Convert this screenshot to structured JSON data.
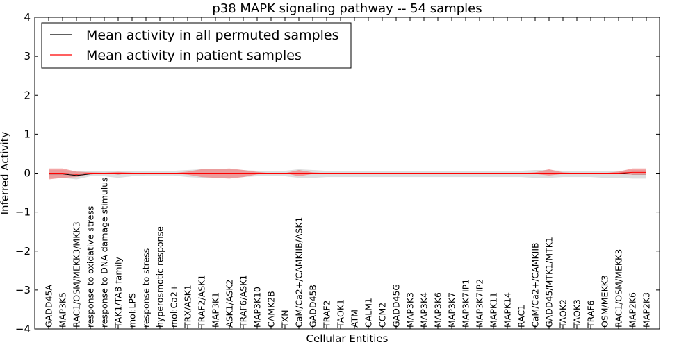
{
  "chart_data": {
    "type": "line",
    "title": "p38 MAPK signaling pathway -- 54 samples",
    "xlabel": "Cellular Entities",
    "ylabel": "Inferred Activity",
    "ylim": [
      -4,
      4
    ],
    "yticks": [
      -4,
      -3,
      -2,
      -1,
      0,
      1,
      2,
      3,
      4
    ],
    "ytick_labels": [
      "−4",
      "−3",
      "−2",
      "−1",
      "0",
      "1",
      "2",
      "3",
      "4"
    ],
    "legend_position": "top-left",
    "categories": [
      "GADD45A",
      "MAP3K5",
      "RAC1/OSM/MEKK3/MKK3",
      "response to oxidative stress",
      "response to DNA damage stimulus",
      "TAK1/TAB family",
      "mol:LPS",
      "response to stress",
      "hyperosmotic response",
      "mol:Ca2+",
      "TRX/ASK1",
      "TRAF2/ASK1",
      "MAP3K1",
      "ASK1/ASK2",
      "TRAF6/ASK1",
      "MAP3K10",
      "CAMK2B",
      "TXN",
      "CaM/Ca2+/CAMKIIB/ASK1",
      "GADD45B",
      "TRAF2",
      "TAOK1",
      "ATM",
      "CALM1",
      "CCM2",
      "GADD45G",
      "MAP3K3",
      "MAP3K4",
      "MAP3K6",
      "MAP3K7",
      "MAP3K7IP1",
      "MAP3K7IP2",
      "MAPK11",
      "MAPK14",
      "RAC1",
      "CaM/Ca2+/CAMKIIB",
      "GADD45/MTK1/MTK1",
      "TAOK2",
      "TAOK3",
      "TRAF6",
      "OSM/MEKK3",
      "RAC1/OSM/MEKK3",
      "MAP2K6",
      "MAP2K3"
    ],
    "series": [
      {
        "name": "Mean activity in all permuted samples",
        "color": "#000000",
        "values": [
          -0.02,
          -0.02,
          -0.06,
          -0.02,
          -0.01,
          -0.02,
          -0.01,
          0.0,
          0.0,
          0.0,
          0.0,
          0.0,
          0.0,
          0.0,
          0.0,
          0.0,
          0.0,
          0.0,
          0.0,
          0.0,
          0.0,
          0.0,
          0.0,
          0.0,
          0.0,
          0.0,
          0.0,
          0.0,
          0.0,
          0.0,
          0.0,
          0.0,
          0.0,
          0.0,
          0.0,
          0.0,
          0.0,
          0.0,
          0.0,
          0.0,
          0.0,
          0.0,
          -0.02,
          -0.02
        ],
        "band_low": [
          -0.12,
          -0.12,
          -0.16,
          -0.08,
          -0.08,
          -0.12,
          -0.08,
          -0.06,
          -0.06,
          -0.06,
          -0.1,
          -0.12,
          -0.12,
          -0.12,
          -0.1,
          -0.08,
          -0.08,
          -0.08,
          -0.12,
          -0.12,
          -0.1,
          -0.1,
          -0.1,
          -0.1,
          -0.1,
          -0.1,
          -0.1,
          -0.1,
          -0.1,
          -0.1,
          -0.1,
          -0.1,
          -0.1,
          -0.1,
          -0.1,
          -0.12,
          -0.12,
          -0.1,
          -0.1,
          -0.1,
          -0.12,
          -0.12,
          -0.14,
          -0.14
        ],
        "band_high": [
          0.08,
          0.08,
          0.04,
          0.06,
          0.06,
          0.06,
          0.06,
          0.06,
          0.06,
          0.06,
          0.08,
          0.1,
          0.1,
          0.1,
          0.08,
          0.06,
          0.06,
          0.06,
          0.1,
          0.08,
          0.06,
          0.06,
          0.06,
          0.06,
          0.06,
          0.06,
          0.06,
          0.06,
          0.06,
          0.06,
          0.06,
          0.06,
          0.06,
          0.06,
          0.06,
          0.08,
          0.08,
          0.06,
          0.06,
          0.06,
          0.06,
          0.06,
          0.08,
          0.08
        ]
      },
      {
        "name": "Mean activity in patient samples",
        "color": "#ff0000",
        "values": [
          0.0,
          0.0,
          -0.03,
          0.0,
          0.0,
          0.0,
          0.0,
          0.0,
          0.0,
          0.0,
          0.0,
          0.0,
          0.0,
          0.0,
          0.0,
          0.0,
          0.0,
          0.0,
          0.0,
          0.0,
          0.0,
          0.0,
          0.0,
          0.0,
          0.0,
          0.0,
          0.0,
          0.0,
          0.0,
          0.0,
          0.0,
          0.0,
          0.0,
          0.0,
          0.0,
          0.0,
          0.0,
          0.0,
          0.0,
          0.0,
          0.0,
          0.0,
          0.02,
          0.02
        ],
        "band_low": [
          -0.16,
          -0.12,
          -0.1,
          -0.02,
          -0.01,
          -0.03,
          -0.01,
          0.0,
          0.0,
          0.0,
          -0.04,
          -0.1,
          -0.12,
          -0.14,
          -0.1,
          -0.03,
          0.0,
          0.0,
          -0.08,
          -0.02,
          0.0,
          0.0,
          0.0,
          0.0,
          0.0,
          0.0,
          0.0,
          0.0,
          0.0,
          0.0,
          0.0,
          0.0,
          0.0,
          0.0,
          0.0,
          -0.02,
          -0.06,
          -0.02,
          0.0,
          0.0,
          0.0,
          -0.02,
          -0.04,
          -0.04
        ],
        "band_high": [
          0.12,
          0.12,
          0.04,
          0.02,
          0.01,
          0.03,
          0.01,
          0.0,
          0.0,
          0.0,
          0.04,
          0.1,
          0.1,
          0.12,
          0.08,
          0.03,
          0.0,
          0.0,
          0.08,
          0.02,
          0.0,
          0.0,
          0.0,
          0.0,
          0.0,
          0.0,
          0.0,
          0.0,
          0.0,
          0.0,
          0.0,
          0.0,
          0.0,
          0.0,
          0.0,
          0.02,
          0.1,
          0.02,
          0.0,
          0.0,
          0.0,
          0.04,
          0.12,
          0.12
        ]
      }
    ]
  },
  "colors": {
    "permuted_band": "#c8c8c8",
    "patient_band": "#f08080",
    "axes": "#000000"
  }
}
